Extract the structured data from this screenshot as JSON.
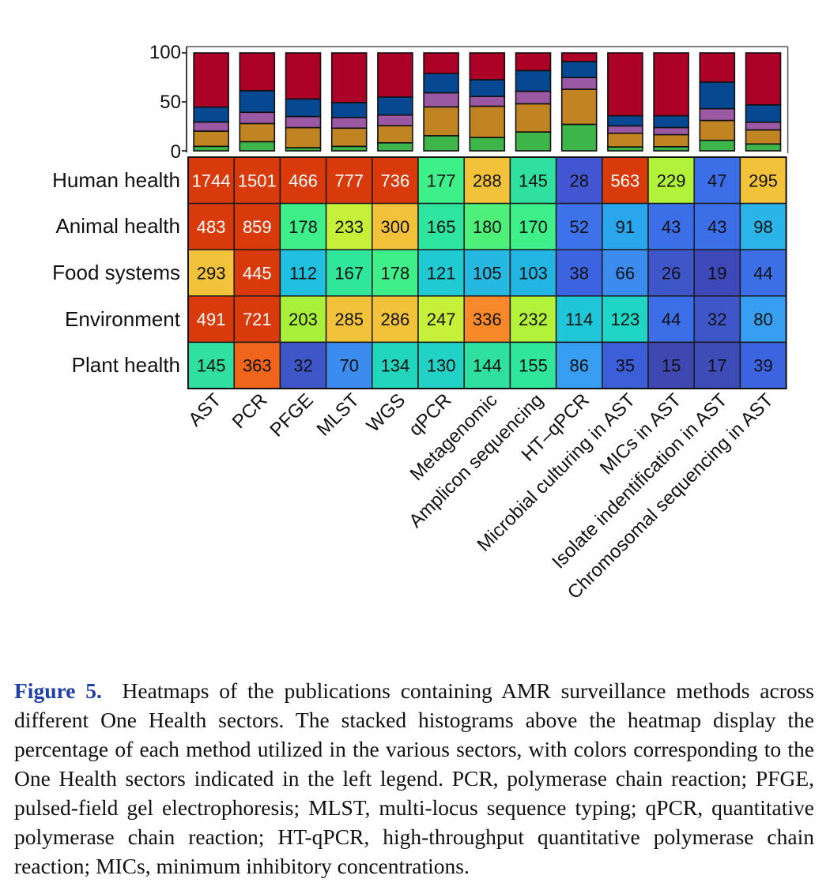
{
  "chart_data": [
    {
      "type": "bar",
      "stacked": true,
      "title": "",
      "ylabel": "",
      "xlabel": "",
      "ylim": [
        0,
        100
      ],
      "yticks": [
        "0",
        "50",
        "100"
      ],
      "categories": [
        "AST",
        "PCR",
        "PFGE",
        "MLST",
        "WGS",
        "qPCR",
        "Metagenomic",
        "Amplicon sequencing",
        "HT–qPCR",
        "Microbial culturing in AST",
        "MICs in AST",
        "Isolate indentification in AST",
        "Chromosomal sequencing in AST"
      ],
      "stack_order_bottom_to_top": [
        "Plant health",
        "Environment",
        "Food systems",
        "Animal health",
        "Human health"
      ],
      "series_colors": {
        "Human health": "#ad0026",
        "Animal health": "#064891",
        "Food systems": "#9b59a3",
        "Environment": "#c08522",
        "Plant health": "#3db549"
      },
      "note": "percentages derived from the heatmap counts per method"
    },
    {
      "type": "heatmap",
      "rows": [
        "Human health",
        "Animal health",
        "Food systems",
        "Environment",
        "Plant health"
      ],
      "columns": [
        "AST",
        "PCR",
        "PFGE",
        "MLST",
        "WGS",
        "qPCR",
        "Metagenomic",
        "Amplicon sequencing",
        "HT–qPCR",
        "Microbial culturing in AST",
        "MICs in AST",
        "Isolate indentification in AST",
        "Chromosomal sequencing in AST"
      ],
      "values": [
        [
          1744,
          1501,
          466,
          777,
          736,
          177,
          288,
          145,
          28,
          563,
          229,
          47,
          295
        ],
        [
          483,
          859,
          178,
          233,
          300,
          165,
          180,
          170,
          52,
          91,
          43,
          43,
          98
        ],
        [
          293,
          445,
          112,
          167,
          178,
          121,
          105,
          103,
          38,
          66,
          26,
          19,
          44
        ],
        [
          491,
          721,
          203,
          285,
          286,
          247,
          336,
          232,
          114,
          123,
          44,
          32,
          80
        ],
        [
          145,
          363,
          32,
          70,
          134,
          130,
          144,
          155,
          86,
          35,
          15,
          17,
          39
        ]
      ],
      "cell_colors": [
        [
          "#d93a0b",
          "#d93a0b",
          "#d93a0b",
          "#d93a0b",
          "#d93a0b",
          "#3ff08a",
          "#f2c23a",
          "#2fe0a0",
          "#4156d0",
          "#d93a0b",
          "#b3f23a",
          "#3c6ee8",
          "#f2c23a"
        ],
        [
          "#d93a0b",
          "#d93a0b",
          "#3ff08a",
          "#c7f03a",
          "#f2c23a",
          "#2fe6a0",
          "#4ff07a",
          "#3ff08a",
          "#3d72ea",
          "#2aa6ec",
          "#3c6ee8",
          "#3c6ee8",
          "#2ab4e8"
        ],
        [
          "#f2c23a",
          "#d93a0b",
          "#22c0e0",
          "#2fe69a",
          "#3ff08a",
          "#1fcad2",
          "#26b8e0",
          "#22b4e2",
          "#3c64e0",
          "#3c8cf0",
          "#3e56c8",
          "#3e48b8",
          "#3c6ee8"
        ],
        [
          "#d93a0b",
          "#d93a0b",
          "#a8f03a",
          "#f2c23a",
          "#f2c23a",
          "#c7f03a",
          "#f7892a",
          "#b3f23a",
          "#1fc6d8",
          "#1fd6c6",
          "#3c6ee8",
          "#3e56c8",
          "#389ef2"
        ],
        [
          "#2fe0a0",
          "#f0641c",
          "#3e56c8",
          "#3c8cf0",
          "#22d6be",
          "#22d2c4",
          "#2fe0a0",
          "#2fe69a",
          "#389ef2",
          "#3c5ed8",
          "#3e48b0",
          "#3e4cb8",
          "#3c64e0"
        ]
      ],
      "text_colors": [
        [
          "#ffffff",
          "#ffffff",
          "#ffffff",
          "#ffffff",
          "#ffffff",
          "#111111",
          "#111111",
          "#111111",
          "#111111",
          "#ffffff",
          "#111111",
          "#111111",
          "#111111"
        ],
        [
          "#ffffff",
          "#ffffff",
          "#111111",
          "#111111",
          "#111111",
          "#111111",
          "#111111",
          "#111111",
          "#111111",
          "#111111",
          "#111111",
          "#111111",
          "#111111"
        ],
        [
          "#111111",
          "#ffffff",
          "#111111",
          "#111111",
          "#111111",
          "#111111",
          "#111111",
          "#111111",
          "#111111",
          "#111111",
          "#111111",
          "#111111",
          "#111111"
        ],
        [
          "#ffffff",
          "#ffffff",
          "#111111",
          "#111111",
          "#111111",
          "#111111",
          "#111111",
          "#111111",
          "#111111",
          "#111111",
          "#111111",
          "#111111",
          "#111111"
        ],
        [
          "#111111",
          "#111111",
          "#111111",
          "#111111",
          "#111111",
          "#111111",
          "#111111",
          "#111111",
          "#111111",
          "#111111",
          "#111111",
          "#111111",
          "#111111"
        ]
      ]
    }
  ],
  "caption": {
    "label": "Figure 5.",
    "text": "Heatmaps of the publications containing AMR surveillance methods across different One Health sectors. The stacked histograms above the heatmap display the percentage of each method utilized in the various sectors, with colors corresponding to the One Health sectors indicated in the left legend. PCR, polymerase chain reaction; PFGE, pulsed-field gel electrophoresis; MLST, multi-locus sequence typing; qPCR, quantitative polymerase chain reaction; HT-qPCR, high-throughput quantitative polymerase chain reaction; MICs, minimum inhibitory concentrations."
  }
}
